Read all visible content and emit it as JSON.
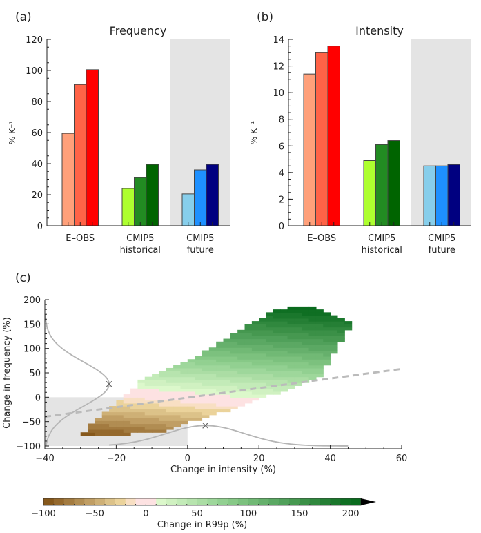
{
  "chart_data": [
    {
      "type": "bar",
      "panel_label": "(a)",
      "title": "Frequency",
      "ylabel": "% K⁻¹",
      "ylim": [
        0,
        120
      ],
      "yticks": [
        0,
        20,
        40,
        60,
        80,
        100,
        120
      ],
      "categories": [
        "E–OBS",
        "CMIP5 historical",
        "CMIP5 future"
      ],
      "category_lines": [
        [
          "E–OBS"
        ],
        [
          "CMIP5",
          "historical"
        ],
        [
          "CMIP5",
          "future"
        ]
      ],
      "shaded_category": 2,
      "series_values": [
        [
          59.5,
          91,
          100.5
        ],
        [
          24,
          31,
          39.5
        ],
        [
          20.5,
          36,
          39.5
        ]
      ],
      "colors": [
        [
          "#ffa07a",
          "#ff6347",
          "#ff0000"
        ],
        [
          "#adff2f",
          "#228b22",
          "#006400"
        ],
        [
          "#87ceeb",
          "#1e90ff",
          "#000080"
        ]
      ]
    },
    {
      "type": "bar",
      "panel_label": "(b)",
      "title": "Intensity",
      "ylabel": "% K⁻¹",
      "ylim": [
        0,
        14
      ],
      "yticks": [
        0,
        2,
        4,
        6,
        8,
        10,
        12,
        14
      ],
      "categories": [
        "E–OBS",
        "CMIP5 historical",
        "CMIP5 future"
      ],
      "category_lines": [
        [
          "E–OBS"
        ],
        [
          "CMIP5",
          "historical"
        ],
        [
          "CMIP5",
          "future"
        ]
      ],
      "shaded_category": 2,
      "series_values": [
        [
          11.4,
          13.0,
          13.5
        ],
        [
          4.9,
          6.1,
          6.4
        ],
        [
          4.5,
          4.5,
          4.6
        ]
      ],
      "colors": [
        [
          "#ffa07a",
          "#ff6347",
          "#ff0000"
        ],
        [
          "#adff2f",
          "#228b22",
          "#006400"
        ],
        [
          "#87ceeb",
          "#1e90ff",
          "#000080"
        ]
      ]
    },
    {
      "type": "heatmap",
      "panel_label": "(c)",
      "xlabel": "Change in intensity (%)",
      "ylabel": "Change in frequency (%)",
      "xlim": [
        -40,
        60
      ],
      "ylim": [
        -100,
        200
      ],
      "xticks": [
        -40,
        -20,
        0,
        20,
        40,
        60
      ],
      "yticks": [
        -100,
        -50,
        0,
        50,
        100,
        150,
        200
      ],
      "shaded_region": {
        "x": [
          -40,
          0
        ],
        "y": [
          -100,
          0
        ]
      },
      "cloud_outline": [
        [
          -30,
          -80
        ],
        [
          -8,
          -72
        ],
        [
          15,
          -18
        ],
        [
          37,
          40
        ],
        [
          46,
          150
        ],
        [
          34,
          188
        ],
        [
          24,
          178
        ],
        [
          0,
          72
        ],
        [
          -12,
          40
        ],
        [
          -17,
          5
        ],
        [
          -25,
          -40
        ]
      ],
      "dashed_line": [
        [
          -40,
          -40
        ],
        [
          60,
          58
        ]
      ],
      "freq_marginal_peak": {
        "x": -22,
        "y": 27
      },
      "intensity_marginal_peak": {
        "x": 5,
        "y": -58
      },
      "colorbar": {
        "label": "Change in R99p (%)",
        "range": [
          -100,
          210
        ],
        "ticks": [
          -100,
          -50,
          0,
          50,
          100,
          150,
          200
        ],
        "step": 10,
        "extend": "max"
      }
    }
  ]
}
